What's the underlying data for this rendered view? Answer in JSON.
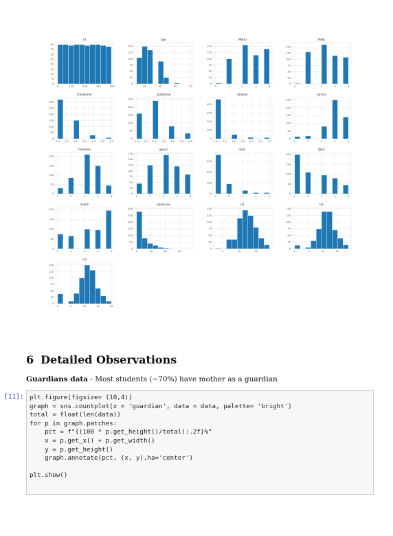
{
  "chart_data": [
    {
      "type": "histogram",
      "title": "id",
      "bins": [
        0,
        39.5,
        79,
        118.5,
        158,
        197.5,
        237,
        276.5,
        316,
        355.5,
        395
      ],
      "counts": [
        40,
        40,
        39,
        40,
        40,
        39,
        40,
        40,
        39,
        38
      ],
      "xlim": [
        -20,
        415
      ],
      "ylim": [
        0,
        42
      ],
      "xticks": [
        0,
        100,
        200,
        300,
        400
      ],
      "yticks": [
        0,
        5,
        10,
        15,
        20,
        25,
        30,
        35,
        40
      ]
    },
    {
      "type": "histogram",
      "title": "age",
      "bins": [
        15,
        15.7,
        16.4,
        17.1,
        17.8,
        18.5,
        19.2,
        19.9,
        20.6,
        21.3,
        22
      ],
      "counts": [
        105,
        150,
        135,
        0,
        90,
        25,
        0,
        3,
        1,
        1
      ],
      "xlim": [
        14.65,
        22.35
      ],
      "ylim": [
        0,
        165
      ],
      "xticks": [
        16,
        18,
        20,
        22
      ],
      "yticks": [
        0,
        25,
        50,
        75,
        100,
        125,
        150
      ]
    },
    {
      "type": "histogram",
      "title": "Medu",
      "bins": [
        0,
        0.4,
        0.8,
        1.2,
        1.6,
        2,
        2.4,
        2.8,
        3.2,
        3.6,
        4
      ],
      "counts": [
        3,
        0,
        100,
        0,
        0,
        155,
        0,
        115,
        0,
        140
      ],
      "xlim": [
        -0.2,
        4.2
      ],
      "ylim": [
        0,
        165
      ],
      "xticks": [
        0,
        1,
        2,
        3,
        4
      ],
      "yticks": [
        0,
        25,
        50,
        75,
        100,
        125,
        150
      ]
    },
    {
      "type": "histogram",
      "title": "Fedu",
      "bins": [
        0,
        0.4,
        0.8,
        1.2,
        1.6,
        2,
        2.4,
        2.8,
        3.2,
        3.6,
        4
      ],
      "counts": [
        2,
        0,
        130,
        0,
        0,
        160,
        0,
        115,
        0,
        108
      ],
      "xlim": [
        -0.2,
        4.2
      ],
      "ylim": [
        0,
        168
      ],
      "xticks": [
        0,
        1,
        2,
        3,
        4
      ],
      "yticks": [
        0,
        25,
        50,
        75,
        100,
        125,
        150
      ]
    },
    {
      "type": "histogram",
      "title": "traveltime",
      "bins": [
        1,
        1.3,
        1.6,
        1.9,
        2.2,
        2.5,
        2.8,
        3.1,
        3.4,
        3.7,
        4
      ],
      "counts": [
        320,
        0,
        0,
        150,
        0,
        0,
        30,
        0,
        0,
        10
      ],
      "xlim": [
        0.85,
        4.15
      ],
      "ylim": [
        0,
        335
      ],
      "xticks": [
        {
          "value": 1,
          "label": "1.0"
        },
        {
          "value": 1.5,
          "label": "1.5"
        },
        {
          "value": 2,
          "label": "2.0"
        },
        {
          "value": 2.5,
          "label": "2.5"
        },
        {
          "value": 3,
          "label": "3.0"
        },
        {
          "value": 3.5,
          "label": "3.5"
        },
        {
          "value": 4,
          "label": "4.0"
        }
      ],
      "yticks": [
        0,
        50,
        100,
        150,
        200,
        250,
        300
      ]
    },
    {
      "type": "histogram",
      "title": "studytime",
      "bins": [
        1,
        1.3,
        1.6,
        1.9,
        2.2,
        2.5,
        2.8,
        3.1,
        3.4,
        3.7,
        4
      ],
      "counts": [
        160,
        0,
        0,
        240,
        0,
        0,
        80,
        0,
        0,
        35
      ],
      "xlim": [
        0.85,
        4.15
      ],
      "ylim": [
        0,
        260
      ],
      "xticks": [
        {
          "value": 1,
          "label": "1.0"
        },
        {
          "value": 1.5,
          "label": "1.5"
        },
        {
          "value": 2,
          "label": "2.0"
        },
        {
          "value": 2.5,
          "label": "2.5"
        },
        {
          "value": 3,
          "label": "3.0"
        },
        {
          "value": 3.5,
          "label": "3.5"
        },
        {
          "value": 4,
          "label": "4.0"
        }
      ],
      "yticks": [
        0,
        50,
        100,
        150,
        200,
        250
      ]
    },
    {
      "type": "histogram",
      "title": "failures",
      "bins": [
        0,
        0.3,
        0.6,
        0.9,
        1.2,
        1.5,
        1.8,
        2.1,
        2.4,
        2.7,
        3
      ],
      "counts": [
        460,
        0,
        0,
        50,
        0,
        0,
        17,
        0,
        0,
        15
      ],
      "xlim": [
        -0.15,
        3.15
      ],
      "ylim": [
        0,
        480
      ],
      "xticks": [
        {
          "value": 0,
          "label": "0.0"
        },
        {
          "value": 0.5,
          "label": "0.5"
        },
        {
          "value": 1,
          "label": "1.0"
        },
        {
          "value": 1.5,
          "label": "1.5"
        },
        {
          "value": 2,
          "label": "2.0"
        },
        {
          "value": 2.5,
          "label": "2.5"
        },
        {
          "value": 3,
          "label": "3.0"
        }
      ],
      "yticks": [
        0,
        100,
        200,
        300,
        400
      ]
    },
    {
      "type": "histogram",
      "title": "famrel",
      "bins": [
        1,
        1.4,
        1.8,
        2.2,
        2.6,
        3,
        3.4,
        3.8,
        4.2,
        4.6,
        5
      ],
      "counts": [
        15,
        0,
        18,
        0,
        0,
        80,
        0,
        250,
        0,
        140
      ],
      "xlim": [
        0.8,
        5.2
      ],
      "ylim": [
        0,
        265
      ],
      "xticks": [
        1,
        2,
        3,
        4,
        5
      ],
      "yticks": [
        0,
        50,
        100,
        150,
        200,
        250
      ]
    },
    {
      "type": "histogram",
      "title": "freetime",
      "bins": [
        1,
        1.4,
        1.8,
        2.2,
        2.6,
        3,
        3.4,
        3.8,
        4.2,
        4.6,
        5
      ],
      "counts": [
        30,
        0,
        85,
        0,
        0,
        210,
        0,
        150,
        0,
        45
      ],
      "xlim": [
        0.8,
        5.2
      ],
      "ylim": [
        0,
        220
      ],
      "xticks": [
        1,
        2,
        3,
        4,
        5
      ],
      "yticks": [
        0,
        50,
        100,
        150,
        200
      ]
    },
    {
      "type": "histogram",
      "title": "goout",
      "bins": [
        1,
        1.4,
        1.8,
        2.2,
        2.6,
        3,
        3.4,
        3.8,
        4.2,
        4.6,
        5
      ],
      "counts": [
        45,
        0,
        125,
        0,
        0,
        170,
        0,
        120,
        0,
        85
      ],
      "xlim": [
        0.8,
        5.2
      ],
      "ylim": [
        0,
        180
      ],
      "xticks": [
        1,
        2,
        3,
        4,
        5
      ],
      "yticks": [
        0,
        25,
        50,
        75,
        100,
        125,
        150,
        175
      ]
    },
    {
      "type": "histogram",
      "title": "Dalc",
      "bins": [
        1,
        1.4,
        1.8,
        2.2,
        2.6,
        3,
        3.4,
        3.8,
        4.2,
        4.6,
        5
      ],
      "counts": [
        360,
        0,
        90,
        0,
        0,
        30,
        0,
        10,
        0,
        10
      ],
      "xlim": [
        0.8,
        5.2
      ],
      "ylim": [
        0,
        380
      ],
      "xticks": [
        1,
        2,
        3,
        4,
        5
      ],
      "yticks": [
        0,
        100,
        200,
        300
      ]
    },
    {
      "type": "histogram",
      "title": "Walc",
      "bins": [
        1,
        1.4,
        1.8,
        2.2,
        2.6,
        3,
        3.4,
        3.8,
        4.2,
        4.6,
        5
      ],
      "counts": [
        200,
        0,
        110,
        0,
        0,
        95,
        0,
        80,
        0,
        45
      ],
      "xlim": [
        0.8,
        5.2
      ],
      "ylim": [
        0,
        210
      ],
      "xticks": [
        1,
        2,
        3,
        4,
        5
      ],
      "yticks": [
        0,
        50,
        100,
        150,
        200
      ]
    },
    {
      "type": "histogram",
      "title": "health",
      "bins": [
        1,
        1.4,
        1.8,
        2.2,
        2.6,
        3,
        3.4,
        3.8,
        4.2,
        4.6,
        5
      ],
      "counts": [
        75,
        0,
        65,
        0,
        0,
        100,
        0,
        95,
        0,
        195
      ],
      "xlim": [
        0.8,
        5.2
      ],
      "ylim": [
        0,
        210
      ],
      "xticks": [
        1,
        2,
        3,
        4,
        5
      ],
      "yticks": [
        0,
        50,
        100,
        150,
        200
      ]
    },
    {
      "type": "histogram",
      "title": "absences",
      "bins": [
        0,
        7.5,
        15,
        22.5,
        30,
        37.5,
        45,
        52.5,
        60,
        67.5,
        75
      ],
      "counts": [
        280,
        80,
        40,
        25,
        10,
        5,
        0,
        2,
        1,
        1
      ],
      "xlim": [
        -3.75,
        78.75
      ],
      "ylim": [
        0,
        310
      ],
      "xticks": [
        0,
        20,
        40,
        60
      ],
      "yticks": [
        0,
        50,
        100,
        150,
        200,
        250,
        300
      ]
    },
    {
      "type": "histogram",
      "title": "G1",
      "bins": [
        3,
        4.6,
        6.2,
        7.8,
        9.4,
        11,
        12.6,
        14.2,
        15.8,
        17.4,
        19
      ],
      "counts": [
        2,
        0,
        35,
        35,
        115,
        145,
        125,
        80,
        40,
        15
      ],
      "xlim": [
        2.2,
        19.8
      ],
      "ylim": [
        0,
        155
      ],
      "xticks": [
        5,
        10,
        15
      ],
      "yticks": [
        0,
        25,
        50,
        75,
        100,
        125,
        150
      ]
    },
    {
      "type": "histogram",
      "title": "G2",
      "bins": [
        0,
        1.9,
        3.8,
        5.7,
        7.6,
        9.5,
        11.4,
        13.3,
        15.2,
        17.1,
        19
      ],
      "counts": [
        13,
        0,
        5,
        30,
        75,
        140,
        140,
        70,
        40,
        15
      ],
      "xlim": [
        -0.95,
        19.95
      ],
      "ylim": [
        0,
        155
      ],
      "xticks": [
        0,
        5,
        10,
        15
      ],
      "yticks": [
        0,
        25,
        50,
        75,
        100,
        125,
        150
      ]
    },
    {
      "type": "histogram",
      "title": "G3",
      "bins": [
        0,
        2,
        4,
        6,
        8,
        10,
        12,
        14,
        16,
        18,
        20
      ],
      "counts": [
        38,
        0,
        10,
        40,
        100,
        150,
        130,
        60,
        30,
        10
      ],
      "xlim": [
        -1,
        21
      ],
      "ylim": [
        0,
        160
      ],
      "xticks": [
        0,
        5,
        10,
        15,
        20
      ],
      "yticks": [
        0,
        25,
        50,
        75,
        100,
        125,
        150
      ]
    }
  ],
  "section": {
    "number": "6",
    "title": "Detailed Observations"
  },
  "paragraph": {
    "bold": "Guardians data",
    "text": " - Most students (~70%) have mother as a guardian"
  },
  "cell": {
    "prompt": "[11]:",
    "code": [
      "plt.figure(figsize= (10,4))",
      "graph = sns.countplot(x = 'guardian', data = data, palette= 'bright')",
      "total = float(len(data))",
      "for p in graph.patches:",
      "    pct = f\"{(100 * p.get_height()/total):.2f}%\"",
      "    x = p.get_x() + p.get_width()",
      "    y = p.get_height()",
      "    graph.annotate(pct, (x, y),ha='center')",
      "",
      "plt.show()"
    ]
  }
}
